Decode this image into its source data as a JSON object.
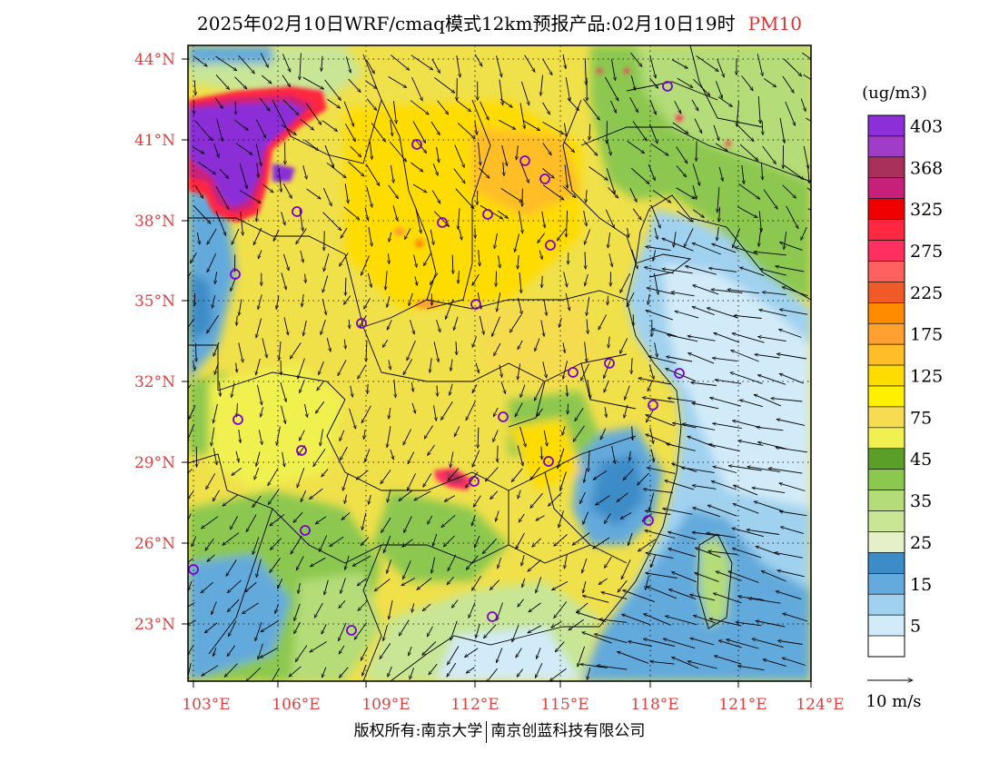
{
  "title": {
    "main": "2025年02月10日WRF/cmaq模式12km预报产品:02月10日19时",
    "variable": "PM10",
    "variable_color": "#e03030"
  },
  "map": {
    "lat_ticks": [
      "44°N",
      "41°N",
      "38°N",
      "35°N",
      "32°N",
      "29°N",
      "26°N",
      "23°N"
    ],
    "lon_ticks": [
      "103°E",
      "106°E",
      "109°E",
      "112°E",
      "115°E",
      "118°E",
      "121°E",
      "124°E"
    ],
    "label_color": "#e04040",
    "city_markers": 22
  },
  "legend": {
    "unit": "(ug/m3)",
    "levels": [
      {
        "label": "403",
        "color": "#8c2fd8"
      },
      {
        "label": "",
        "color": "#a03cc8"
      },
      {
        "label": "368",
        "color": "#a8305a"
      },
      {
        "label": "",
        "color": "#c8207a"
      },
      {
        "label": "325",
        "color": "#f00000"
      },
      {
        "label": "",
        "color": "#ff2840"
      },
      {
        "label": "275",
        "color": "#ff3060"
      },
      {
        "label": "",
        "color": "#ff6060"
      },
      {
        "label": "225",
        "color": "#f05a28"
      },
      {
        "label": "",
        "color": "#ff8c00"
      },
      {
        "label": "175",
        "color": "#ffa030"
      },
      {
        "label": "",
        "color": "#ffbe28"
      },
      {
        "label": "125",
        "color": "#ffdc00"
      },
      {
        "label": "",
        "color": "#fff000"
      },
      {
        "label": "75",
        "color": "#f5dc50"
      },
      {
        "label": "",
        "color": "#f0f050"
      },
      {
        "label": "45",
        "color": "#5aa028"
      },
      {
        "label": "",
        "color": "#8cc850"
      },
      {
        "label": "35",
        "color": "#b4dc78"
      },
      {
        "label": "",
        "color": "#c8e696"
      },
      {
        "label": "25",
        "color": "#e6f0c8"
      },
      {
        "label": "",
        "color": "#3c8cc8"
      },
      {
        "label": "15",
        "color": "#64aadc"
      },
      {
        "label": "",
        "color": "#a0d2f0"
      },
      {
        "label": "5",
        "color": "#d2ebf8"
      },
      {
        "label": "",
        "color": "#ffffff"
      }
    ],
    "wind_scale_label": "10 m/s"
  },
  "copyright": {
    "left": "版权所有:南京大学",
    "right": "南京创蓝科技有限公司"
  }
}
